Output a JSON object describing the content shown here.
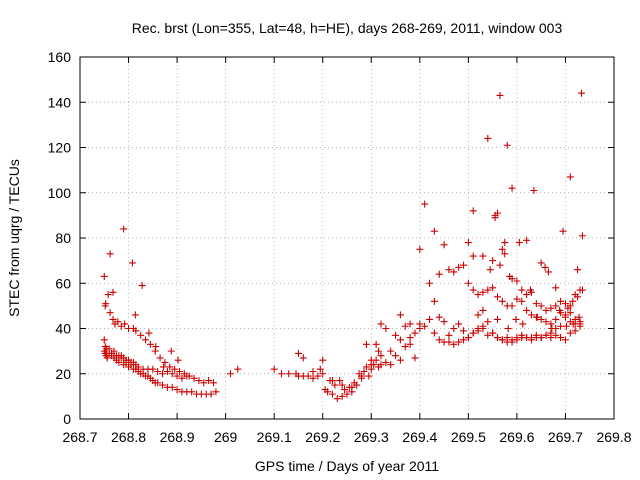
{
  "chart_data": {
    "type": "scatter",
    "title": "Rec. brst (Lon=355, Lat=48, h=HE), days 268-269, 2011, window 003",
    "xlabel": "GPS time / Days of year 2011",
    "ylabel": "STEC from uqrg / TECUs",
    "xlim": [
      268.7,
      269.8
    ],
    "ylim": [
      0,
      160
    ],
    "xticks": [
      268.7,
      268.8,
      268.9,
      269.0,
      269.1,
      269.2,
      269.3,
      269.4,
      269.5,
      269.6,
      269.7,
      269.8
    ],
    "xtick_labels": [
      "268.7",
      "268.8",
      "268.9",
      "269",
      "269.1",
      "269.2",
      "269.3",
      "269.4",
      "269.5",
      "269.6",
      "269.7",
      "269.8"
    ],
    "yticks": [
      0,
      20,
      40,
      60,
      80,
      100,
      120,
      140,
      160
    ],
    "ytick_labels": [
      "0",
      "20",
      "40",
      "60",
      "80",
      "100",
      "120",
      "140",
      "160"
    ],
    "grid": true,
    "marker": "+",
    "color": "#cc0000",
    "series": [
      {
        "name": "STEC",
        "x": [
          268.75,
          268.752,
          268.754,
          268.756,
          268.76,
          268.765,
          268.77,
          268.775,
          268.78,
          268.785,
          268.79,
          268.795,
          268.8,
          268.805,
          268.81,
          268.815,
          268.82,
          268.825,
          268.83,
          268.835,
          268.84,
          268.845,
          268.85,
          268.855,
          268.86,
          268.87,
          268.88,
          268.89,
          268.9,
          268.91,
          268.92,
          268.93,
          268.94,
          268.95,
          268.96,
          268.97,
          268.98,
          268.75,
          268.752,
          268.755,
          268.76,
          268.765,
          268.77,
          268.775,
          268.78,
          268.785,
          268.79,
          268.795,
          268.8,
          268.805,
          268.81,
          268.815,
          268.82,
          268.83,
          268.84,
          268.85,
          268.86,
          268.87,
          268.88,
          268.89,
          268.9,
          268.91,
          268.92,
          268.752,
          268.758,
          268.762,
          268.768,
          268.772,
          268.778,
          268.785,
          268.792,
          268.8,
          268.81,
          268.815,
          268.825,
          268.835,
          268.845,
          268.855,
          268.865,
          268.875,
          268.885,
          268.895,
          268.905,
          268.915,
          268.925,
          268.935,
          268.945,
          268.955,
          268.965,
          268.975,
          268.75,
          268.753,
          268.762,
          268.768,
          268.79,
          268.808,
          268.814,
          268.828,
          268.842,
          268.856,
          268.872,
          268.888,
          268.902,
          269.01,
          269.025,
          269.1,
          269.115,
          269.13,
          269.145,
          269.15,
          269.16,
          269.17,
          269.18,
          269.19,
          269.195,
          269.2,
          269.205,
          269.21,
          269.215,
          269.22,
          269.225,
          269.23,
          269.235,
          269.24,
          269.245,
          269.25,
          269.255,
          269.26,
          269.265,
          269.27,
          269.275,
          269.28,
          269.285,
          269.29,
          269.295,
          269.3,
          269.305,
          269.31,
          269.315,
          269.32,
          269.33,
          269.34,
          269.35,
          269.36,
          269.37,
          269.38,
          269.39,
          269.15,
          269.16,
          269.18,
          269.2,
          269.22,
          269.24,
          269.26,
          269.28,
          269.3,
          269.32,
          269.34,
          269.36,
          269.38,
          269.4,
          269.29,
          269.3,
          269.31,
          269.315,
          269.32,
          269.33,
          269.35,
          269.36,
          269.37,
          269.38,
          269.39,
          269.4,
          269.41,
          269.42,
          269.43,
          269.44,
          269.45,
          269.46,
          269.47,
          269.48,
          269.49,
          269.5,
          269.51,
          269.52,
          269.53,
          269.54,
          269.55,
          269.56,
          269.57,
          269.58,
          269.59,
          269.6,
          269.61,
          269.62,
          269.63,
          269.64,
          269.65,
          269.66,
          269.67,
          269.68,
          269.69,
          269.7,
          269.71,
          269.72,
          269.73,
          269.4,
          269.41,
          269.42,
          269.43,
          269.44,
          269.45,
          269.46,
          269.47,
          269.48,
          269.49,
          269.5,
          269.51,
          269.52,
          269.53,
          269.54,
          269.55,
          269.56,
          269.57,
          269.58,
          269.59,
          269.6,
          269.61,
          269.62,
          269.63,
          269.64,
          269.65,
          269.66,
          269.67,
          269.68,
          269.69,
          269.7,
          269.71,
          269.72,
          269.73,
          269.43,
          269.44,
          269.45,
          269.46,
          269.47,
          269.48,
          269.49,
          269.5,
          269.51,
          269.52,
          269.53,
          269.54,
          269.55,
          269.56,
          269.57,
          269.58,
          269.59,
          269.6,
          269.61,
          269.62,
          269.63,
          269.64,
          269.65,
          269.66,
          269.67,
          269.68,
          269.69,
          269.7,
          269.71,
          269.72,
          269.73,
          269.5,
          269.51,
          269.52,
          269.53,
          269.54,
          269.55,
          269.555,
          269.56,
          269.565,
          269.57,
          269.575,
          269.58,
          269.585,
          269.59,
          269.6,
          269.61,
          269.62,
          269.63,
          269.64,
          269.65,
          269.66,
          269.67,
          269.68,
          269.69,
          269.7,
          269.705,
          269.71,
          269.715,
          269.72,
          269.725,
          269.73,
          269.735,
          269.51,
          269.53,
          269.545,
          269.56,
          269.575,
          269.59,
          269.605,
          269.62,
          269.635,
          269.65,
          269.665,
          269.68,
          269.695,
          269.71,
          269.725,
          269.735,
          269.555,
          269.565,
          269.582,
          269.598,
          269.612,
          269.628,
          269.642,
          269.658,
          269.672,
          269.688,
          269.702,
          269.716,
          269.728,
          269.733
        ],
        "y": [
          30,
          29,
          28,
          27,
          29,
          28,
          27,
          26,
          25,
          27,
          24,
          25,
          23,
          24,
          22,
          22,
          21,
          20,
          20,
          19,
          19,
          18,
          17,
          16,
          16,
          15,
          14,
          14,
          13,
          12,
          12,
          12,
          11,
          11,
          11,
          11,
          12,
          35,
          32,
          31,
          31,
          29,
          30,
          28,
          28,
          28,
          27,
          26,
          26,
          25,
          25,
          24,
          23,
          22,
          22,
          22,
          21,
          20,
          21,
          20,
          19,
          18,
          19,
          50,
          55,
          47,
          44,
          42,
          43,
          41,
          42,
          40,
          40,
          39,
          37,
          35,
          33,
          30,
          27,
          25,
          23,
          22,
          21,
          20,
          19,
          18,
          17,
          16,
          17,
          16,
          63,
          51,
          73,
          56,
          84,
          69,
          46,
          59,
          38,
          32,
          23,
          30,
          26,
          20,
          22,
          22,
          20,
          20,
          20,
          29,
          27,
          19,
          18,
          19,
          22,
          26,
          13,
          12,
          17,
          11,
          15,
          9,
          17,
          10,
          13,
          11,
          14,
          12,
          16,
          15,
          20,
          18,
          21,
          23,
          19,
          22,
          24,
          26,
          23,
          24,
          25,
          30,
          28,
          35,
          32,
          33,
          27,
          19,
          19,
          21,
          20,
          17,
          15,
          14,
          19,
          24,
          28,
          24,
          26,
          36,
          42,
          33,
          26,
          33,
          30,
          42,
          40,
          37,
          46,
          41,
          42,
          38,
          40,
          41,
          44,
          38,
          45,
          43,
          37,
          40,
          42,
          39,
          36,
          38,
          39,
          40,
          37,
          38,
          36,
          35,
          36,
          35,
          36,
          37,
          36,
          36,
          37,
          36,
          37,
          36,
          37,
          36,
          35,
          38,
          39,
          42,
          75,
          95,
          60,
          52,
          35,
          34,
          34,
          33,
          34,
          35,
          36,
          38,
          40,
          41,
          43,
          38,
          36,
          35,
          34,
          34,
          35,
          36,
          36,
          35,
          36,
          36,
          37,
          38,
          40,
          41,
          45,
          47,
          44,
          43,
          83,
          64,
          77,
          66,
          65,
          67,
          68,
          60,
          57,
          55,
          56,
          57,
          58,
          54,
          52,
          50,
          50,
          53,
          52,
          48,
          46,
          45,
          44,
          43,
          42,
          44,
          47,
          46,
          43,
          42,
          41,
          78,
          72,
          46,
          48,
          124,
          70,
          89,
          91,
          143,
          75,
          73,
          121,
          63,
          62,
          61,
          57,
          55,
          56,
          51,
          50,
          48,
          49,
          50,
          52,
          51,
          49,
          50,
          52,
          55,
          54,
          57,
          57,
          92,
          72,
          66,
          44,
          78,
          102,
          78,
          79,
          101,
          69,
          65,
          58,
          83,
          107,
          66,
          81,
          90,
          68,
          40,
          44,
          42,
          57,
          45,
          67,
          40,
          48,
          41,
          42,
          45,
          144
        ]
      }
    ]
  }
}
